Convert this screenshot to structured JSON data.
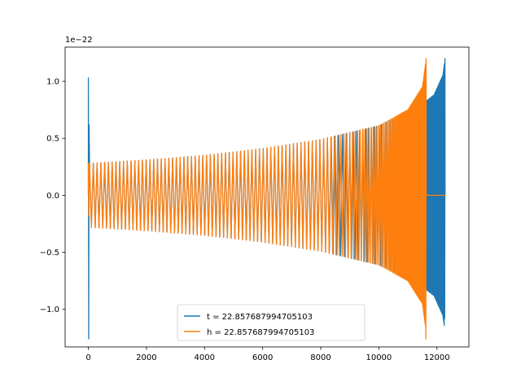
{
  "chart_data": {
    "type": "line",
    "title": "",
    "xlabel": "",
    "ylabel": "",
    "y_offset_label": "1e−22",
    "xlim": [
      -800,
      13100
    ],
    "ylim": [
      -1.33,
      1.3
    ],
    "x_ticks": [
      0,
      2000,
      4000,
      6000,
      8000,
      10000,
      12000
    ],
    "x_tick_labels": [
      "0",
      "2000",
      "4000",
      "6000",
      "8000",
      "10000",
      "12000"
    ],
    "y_ticks": [
      -1.0,
      -0.5,
      0.0,
      0.5,
      1.0
    ],
    "y_tick_labels": [
      "−1.0",
      "−0.5",
      "0.0",
      "0.5",
      "1.0"
    ],
    "grid": false,
    "legend_position": "lower-center",
    "series": [
      {
        "name": "t = 22.857687994705103",
        "color": "#1f77b4",
        "merger_x": 12280,
        "start_x": 0,
        "start_spike": [
          -1.26,
          1.03
        ],
        "envelope": [
          [
            0,
            0.28
          ],
          [
            2000,
            0.31
          ],
          [
            4000,
            0.35
          ],
          [
            6000,
            0.41
          ],
          [
            8000,
            0.49
          ],
          [
            10000,
            0.61
          ],
          [
            11200,
            0.74
          ],
          [
            11900,
            0.88
          ],
          [
            12200,
            1.05
          ],
          [
            12280,
            1.2
          ]
        ],
        "min_at_merger": -1.08
      },
      {
        "name": "h = 22.857687994705103",
        "color": "#ff7f0e",
        "merger_x": 11630,
        "start_x": 0,
        "start_spike": [
          -0.18,
          0.28
        ],
        "envelope": [
          [
            0,
            0.28
          ],
          [
            2000,
            0.31
          ],
          [
            4000,
            0.35
          ],
          [
            6000,
            0.41
          ],
          [
            8000,
            0.49
          ],
          [
            10000,
            0.61
          ],
          [
            11000,
            0.75
          ],
          [
            11500,
            0.95
          ],
          [
            11630,
            1.2
          ]
        ],
        "min_at_merger": -1.26
      }
    ]
  }
}
